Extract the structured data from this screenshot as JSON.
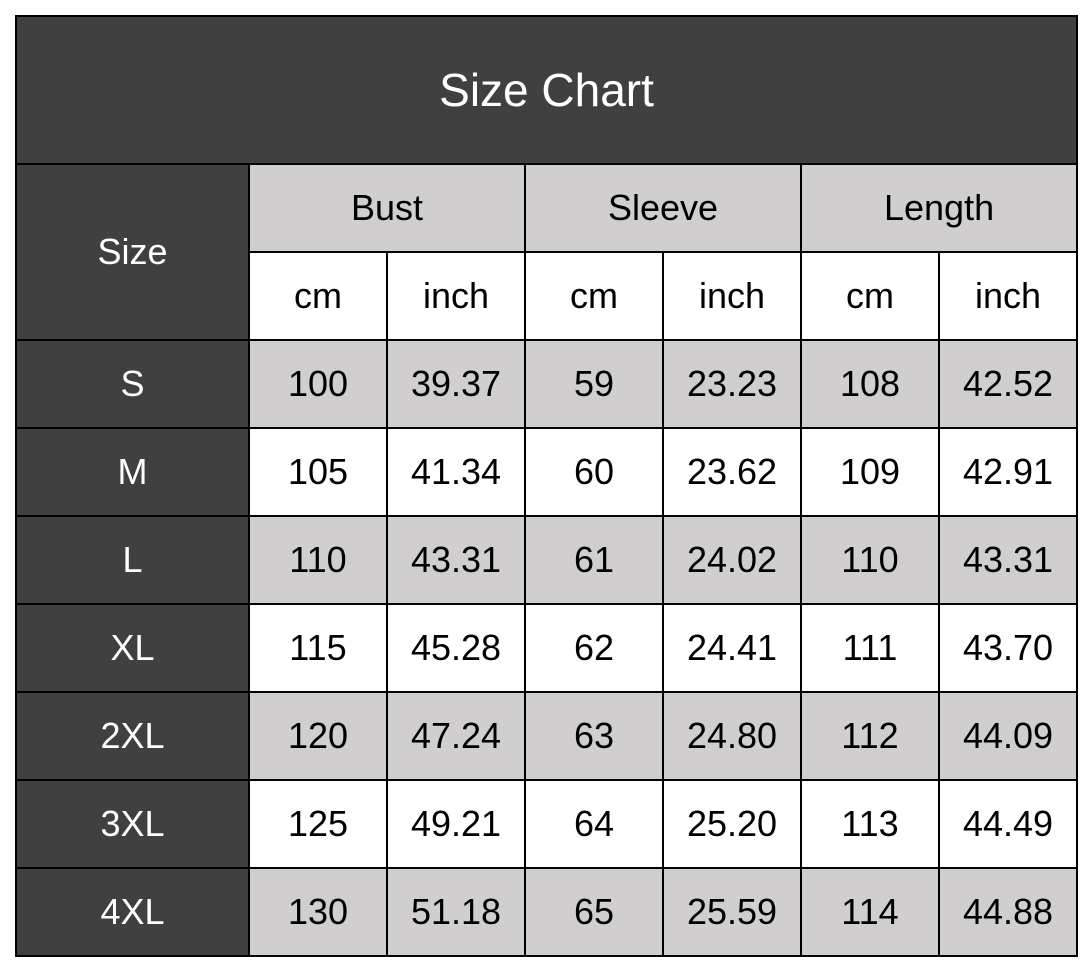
{
  "title": "Size Chart",
  "colors": {
    "dark": "#404040",
    "shaded": "#d0cece",
    "white": "#ffffff"
  },
  "header": {
    "size": "Size",
    "groups": [
      "Bust",
      "Sleeve",
      "Length"
    ],
    "units": [
      "cm",
      "inch",
      "cm",
      "inch",
      "cm",
      "inch"
    ]
  },
  "rows": [
    {
      "size": "S",
      "values": [
        "100",
        "39.37",
        "59",
        "23.23",
        "108",
        "42.52"
      ]
    },
    {
      "size": "M",
      "values": [
        "105",
        "41.34",
        "60",
        "23.62",
        "109",
        "42.91"
      ]
    },
    {
      "size": "L",
      "values": [
        "110",
        "43.31",
        "61",
        "24.02",
        "110",
        "43.31"
      ]
    },
    {
      "size": "XL",
      "values": [
        "115",
        "45.28",
        "62",
        "24.41",
        "111",
        "43.70"
      ]
    },
    {
      "size": "2XL",
      "values": [
        "120",
        "47.24",
        "63",
        "24.80",
        "112",
        "44.09"
      ]
    },
    {
      "size": "3XL",
      "values": [
        "125",
        "49.21",
        "64",
        "25.20",
        "113",
        "44.49"
      ]
    },
    {
      "size": "4XL",
      "values": [
        "130",
        "51.18",
        "65",
        "25.59",
        "114",
        "44.88"
      ]
    }
  ]
}
